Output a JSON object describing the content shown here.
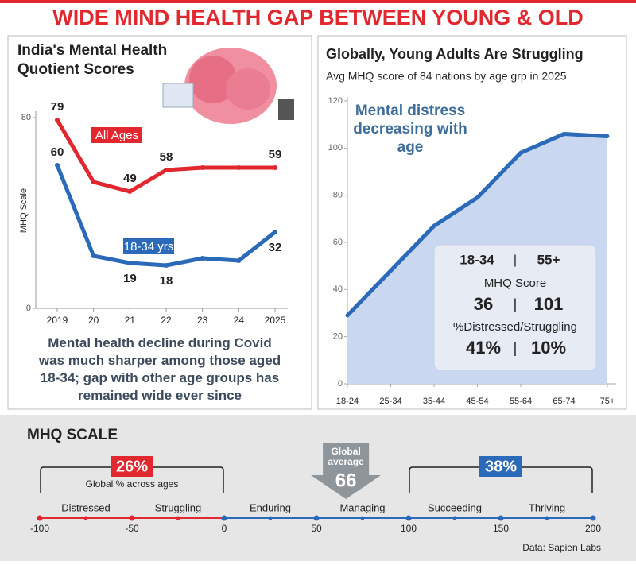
{
  "title": "WIDE MIND HEALTH GAP BETWEEN YOUNG & OLD",
  "chart_data": [
    {
      "type": "line",
      "title": "India's Mental Health Quotient Scores",
      "y_label": "MHQ Scale",
      "categories": [
        "2019",
        "20",
        "21",
        "22",
        "23",
        "24",
        "2025"
      ],
      "ylim": [
        0,
        80
      ],
      "yticks": [
        0,
        80
      ],
      "series": [
        {
          "name": "All Ages",
          "color": "#e0282e",
          "values": [
            79,
            53,
            49,
            58,
            59,
            59,
            59
          ],
          "value_labels": [
            "79",
            null,
            "49",
            "58",
            null,
            null,
            "59"
          ]
        },
        {
          "name": "18-34 yrs",
          "color": "#2a6ab8",
          "values": [
            60,
            22,
            19,
            18,
            21,
            20,
            32
          ],
          "value_labels": [
            "60",
            null,
            "19",
            "18",
            null,
            null,
            "32"
          ]
        }
      ],
      "caption": "Mental health decline during Covid was much sharper among those aged 18-34; gap with other age groups has remained wide ever since"
    },
    {
      "type": "area",
      "title": "Globally, Young Adults Are Struggling",
      "subtitle": "Avg MHQ score of 84 nations by age grp in 2025",
      "annotation": "Mental distress decreasing with age",
      "categories": [
        "18-24",
        "25-34",
        "35-44",
        "45-54",
        "55-64",
        "65-74",
        "75+"
      ],
      "values": [
        29,
        48,
        67,
        79,
        98,
        106,
        105
      ],
      "color": "#2a6ab8",
      "fill": "#c9d8f0",
      "ylim": [
        0,
        120
      ],
      "yticks": [
        0,
        20,
        40,
        60,
        80,
        100,
        120
      ],
      "inset": {
        "headers": [
          "18-34",
          "55+"
        ],
        "rows": [
          {
            "label": "MHQ Score",
            "values": [
              "36",
              "101"
            ]
          },
          {
            "label": "%Distressed/Struggling",
            "values": [
              "41%",
              "10%"
            ]
          }
        ]
      }
    },
    {
      "type": "number-line",
      "title": "MHQ SCALE",
      "xlim": [
        -100,
        200
      ],
      "xticks": [
        -100,
        -50,
        0,
        50,
        100,
        150,
        200
      ],
      "categories": [
        "Distressed",
        "Struggling",
        "Enduring",
        "Managing",
        "Succeeding",
        "Thriving"
      ],
      "brackets": [
        {
          "value": 26,
          "label": "26%",
          "range": [
            -100,
            0
          ],
          "note": "Global % across ages",
          "color": "#e0282e"
        },
        {
          "value": 38,
          "label": "38%",
          "range": [
            100,
            200
          ],
          "color": "#2a6ab8"
        }
      ],
      "average": {
        "label": "Global average",
        "value": 66
      },
      "source": "Data: Sapien Labs"
    }
  ]
}
